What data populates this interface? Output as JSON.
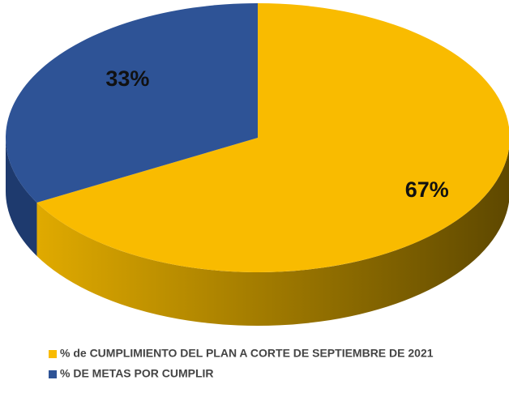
{
  "chart_data": {
    "type": "pie",
    "categories": [
      "% de CUMPLIMIENTO DEL PLAN A CORTE DE SEPTIEMBRE DE 2021",
      "% DE METAS POR CUMPLIR"
    ],
    "values": [
      67,
      33
    ],
    "value_labels": [
      "67%",
      "33%"
    ],
    "colors": [
      "#f9bb00",
      "#2e5396"
    ],
    "side_colors": [
      "#b58800",
      "#1e3a6e"
    ],
    "legend": "bottom"
  }
}
